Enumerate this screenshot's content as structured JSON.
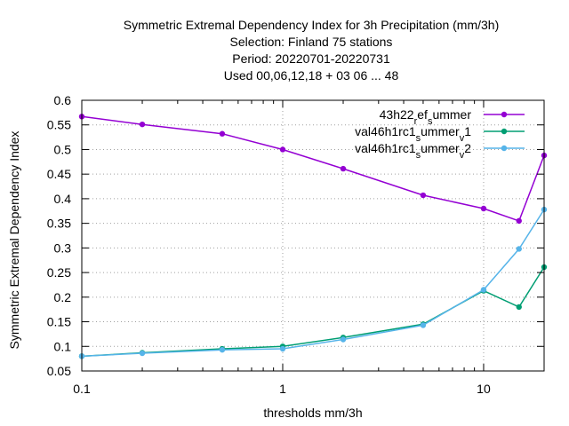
{
  "chart_data": {
    "type": "line",
    "title_lines": [
      "Symmetric Extremal Dependency Index  for 3h Precipitation (mm/3h)",
      "Selection: Finland      75 stations",
      "Period: 20220701-20220731",
      "Used  00,06,12,18  + 03 06 ... 48"
    ],
    "xlabel": "thresholds mm/3h",
    "ylabel": "Symmetric Extremal Dependency Index",
    "x_scale": "log",
    "xlim": [
      0.1,
      20
    ],
    "ylim": [
      0.05,
      0.6
    ],
    "x_ticks": [
      0.1,
      1,
      10
    ],
    "x_tick_labels": [
      "0.1",
      "1",
      "10"
    ],
    "y_ticks": [
      0.05,
      0.1,
      0.15,
      0.2,
      0.25,
      0.3,
      0.35,
      0.4,
      0.45,
      0.5,
      0.55,
      0.6
    ],
    "y_tick_labels": [
      "0.05",
      "0.1",
      "0.15",
      "0.2",
      "0.25",
      "0.3",
      "0.35",
      "0.4",
      "0.45",
      "0.5",
      "0.55",
      "0.6"
    ],
    "grid": true,
    "legend_position": "top-right",
    "x": [
      0.1,
      0.2,
      0.5,
      1,
      2,
      5,
      10,
      15,
      20
    ],
    "series": [
      {
        "name_main": "43h22",
        "name_parts": [
          [
            "_",
            "r"
          ],
          [
            "",
            "ef"
          ],
          [
            "_",
            "s"
          ],
          [
            "",
            "ummer"
          ]
        ],
        "color": "#9400d3",
        "values": [
          0.567,
          0.551,
          0.532,
          0.5,
          0.461,
          0.407,
          0.38,
          0.355,
          0.488
        ]
      },
      {
        "name_main": "val46h1rc1",
        "name_parts": [
          [
            "_",
            "s"
          ],
          [
            "",
            "ummer"
          ],
          [
            "_",
            "v"
          ],
          [
            "",
            "1"
          ]
        ],
        "color": "#009e73",
        "values": [
          0.08,
          0.087,
          0.095,
          0.1,
          0.118,
          0.145,
          0.213,
          0.18,
          0.261
        ]
      },
      {
        "name_main": "val46h1rc1",
        "name_parts": [
          [
            "_",
            "s"
          ],
          [
            "",
            "ummer"
          ],
          [
            "_",
            "v"
          ],
          [
            "",
            "2"
          ]
        ],
        "color": "#56b4e9",
        "values": [
          0.08,
          0.086,
          0.093,
          0.095,
          0.114,
          0.143,
          0.215,
          0.298,
          0.378
        ]
      }
    ]
  }
}
